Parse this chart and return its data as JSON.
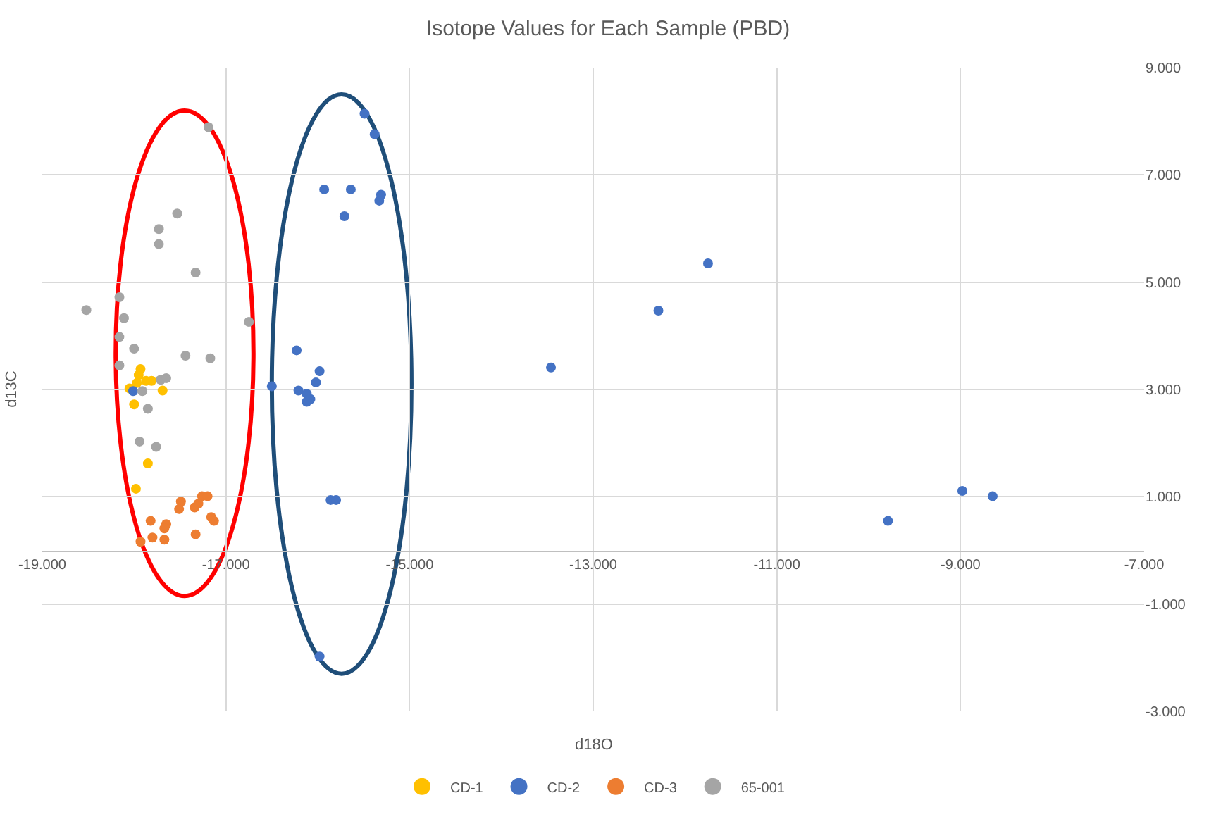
{
  "chart_data": {
    "type": "scatter",
    "title": "Isotope Values for Each Sample (PBD)",
    "xlabel": "d18O",
    "ylabel": "d13C",
    "xlim": [
      -19,
      -7
    ],
    "ylim": [
      -3,
      9
    ],
    "xticks": [
      {
        "value": -19,
        "label": "-19.000"
      },
      {
        "value": -17,
        "label": "-17.000"
      },
      {
        "value": -15,
        "label": "-15.000"
      },
      {
        "value": -13,
        "label": "-13.000"
      },
      {
        "value": -11,
        "label": "-11.000"
      },
      {
        "value": -9,
        "label": "-9.000"
      },
      {
        "value": -7,
        "label": "-7.000"
      }
    ],
    "yticks": [
      {
        "value": -3,
        "label": "-3.000"
      },
      {
        "value": -1,
        "label": "-1.000"
      },
      {
        "value": 1,
        "label": "1.000"
      },
      {
        "value": 3,
        "label": "3.000"
      },
      {
        "value": 5,
        "label": "5.000"
      },
      {
        "value": 7,
        "label": "7.000"
      },
      {
        "value": 9,
        "label": "9.000"
      }
    ],
    "grid": true,
    "legend": "bottom",
    "marker": "circle",
    "series": [
      {
        "name": "CD-1",
        "color": "#ffc000",
        "x": [
          -17.93,
          -17.95,
          -17.87,
          -17.81,
          -17.97,
          -18.05,
          -17.69,
          -18.0,
          -17.85,
          -17.98
        ],
        "values": [
          3.38,
          3.27,
          3.16,
          3.16,
          3.12,
          3.02,
          2.98,
          2.72,
          1.62,
          1.15
        ]
      },
      {
        "name": "CD-2",
        "color": "#4472c4",
        "x": [
          -18.01,
          -15.49,
          -15.38,
          -15.93,
          -15.64,
          -15.31,
          -15.33,
          -15.71,
          -16.23,
          -15.98,
          -16.02,
          -16.5,
          -16.21,
          -16.12,
          -16.08,
          -16.12,
          -15.86,
          -15.8,
          -15.98,
          -13.46,
          -12.29,
          -11.75,
          -9.79,
          -8.98,
          -8.65
        ],
        "values": [
          2.97,
          8.14,
          7.76,
          6.73,
          6.73,
          6.63,
          6.52,
          6.23,
          3.73,
          3.34,
          3.13,
          3.06,
          2.98,
          2.92,
          2.82,
          2.77,
          0.94,
          0.94,
          -1.98,
          3.41,
          4.47,
          5.35,
          0.55,
          1.11,
          1.01
        ]
      },
      {
        "name": "CD-3",
        "color": "#ed7d31",
        "x": [
          -17.49,
          -17.26,
          -17.2,
          -17.51,
          -17.34,
          -17.3,
          -17.16,
          -17.13,
          -17.82,
          -17.65,
          -17.67,
          -17.93,
          -17.8,
          -17.67,
          -17.33
        ],
        "values": [
          0.91,
          1.01,
          1.01,
          0.77,
          0.8,
          0.87,
          0.62,
          0.55,
          0.55,
          0.49,
          0.41,
          0.16,
          0.24,
          0.2,
          0.3
        ]
      },
      {
        "name": "65-001",
        "color": "#a5a5a5",
        "x": [
          -17.19,
          -17.53,
          -17.73,
          -17.73,
          -17.33,
          -18.16,
          -18.52,
          -18.11,
          -16.75,
          -18.16,
          -18.0,
          -17.44,
          -17.17,
          -18.16,
          -17.71,
          -17.65,
          -17.91,
          -17.85,
          -17.94,
          -17.76
        ],
        "values": [
          7.89,
          6.28,
          5.99,
          5.71,
          5.18,
          4.72,
          4.48,
          4.33,
          4.26,
          3.98,
          3.76,
          3.63,
          3.58,
          3.45,
          3.18,
          3.21,
          2.97,
          2.64,
          2.03,
          1.93
        ]
      }
    ]
  }
}
